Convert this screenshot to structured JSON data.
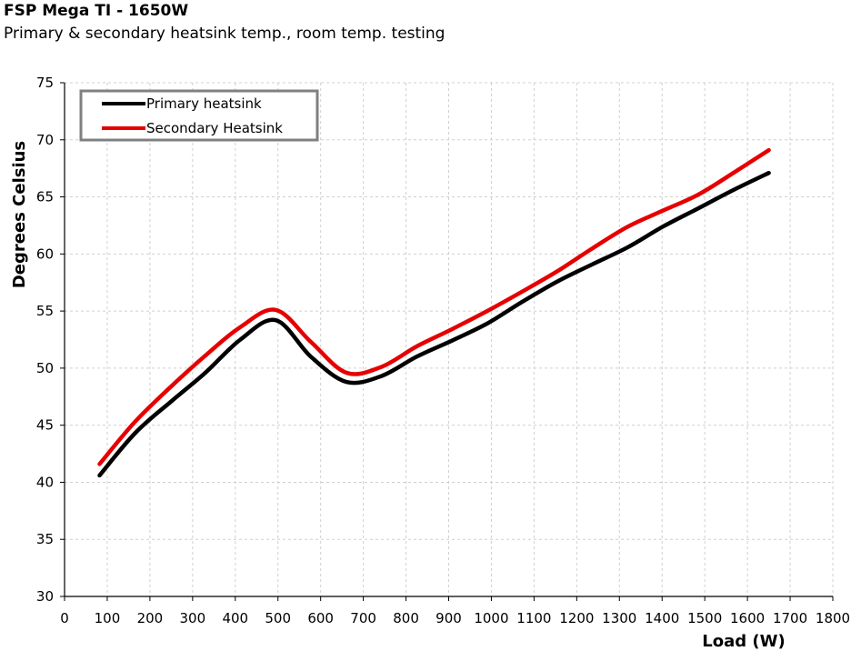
{
  "chart_data": {
    "type": "line",
    "title": "FSP Mega TI - 1650W",
    "subtitle": "Primary & secondary heatsink temp., room temp. testing",
    "xlabel": "Load (W)",
    "ylabel": "Degrees Celsius",
    "xlim": [
      0,
      1800
    ],
    "ylim": [
      30,
      75
    ],
    "xticks": [
      0,
      100,
      200,
      300,
      400,
      500,
      600,
      700,
      800,
      900,
      1000,
      1100,
      1200,
      1300,
      1400,
      1500,
      1600,
      1700,
      1800
    ],
    "yticks": [
      30,
      35,
      40,
      45,
      50,
      55,
      60,
      65,
      70,
      75
    ],
    "grid": true,
    "legend_position": "top-left",
    "series": [
      {
        "name": "Primary heatsink",
        "color": "#000000",
        "x": [
          82,
          165,
          247,
          330,
          412,
          495,
          577,
          660,
          742,
          825,
          907,
          990,
          1072,
          1155,
          1237,
          1320,
          1402,
          1485,
          1567,
          1650
        ],
        "y": [
          40.6,
          44.3,
          47.0,
          49.6,
          52.5,
          54.2,
          51.0,
          48.8,
          49.3,
          51.0,
          52.4,
          53.9,
          55.8,
          57.6,
          59.1,
          60.6,
          62.4,
          64.0,
          65.6,
          67.1
        ]
      },
      {
        "name": "Secondary Heatsink",
        "color": "#e60000",
        "x": [
          82,
          165,
          247,
          330,
          412,
          495,
          577,
          660,
          742,
          825,
          907,
          990,
          1072,
          1155,
          1237,
          1320,
          1402,
          1485,
          1567,
          1650
        ],
        "y": [
          41.6,
          45.3,
          48.3,
          51.1,
          53.6,
          55.1,
          52.3,
          49.6,
          50.1,
          51.9,
          53.4,
          55.0,
          56.7,
          58.5,
          60.5,
          62.4,
          63.8,
          65.2,
          67.1,
          69.1
        ]
      }
    ]
  }
}
